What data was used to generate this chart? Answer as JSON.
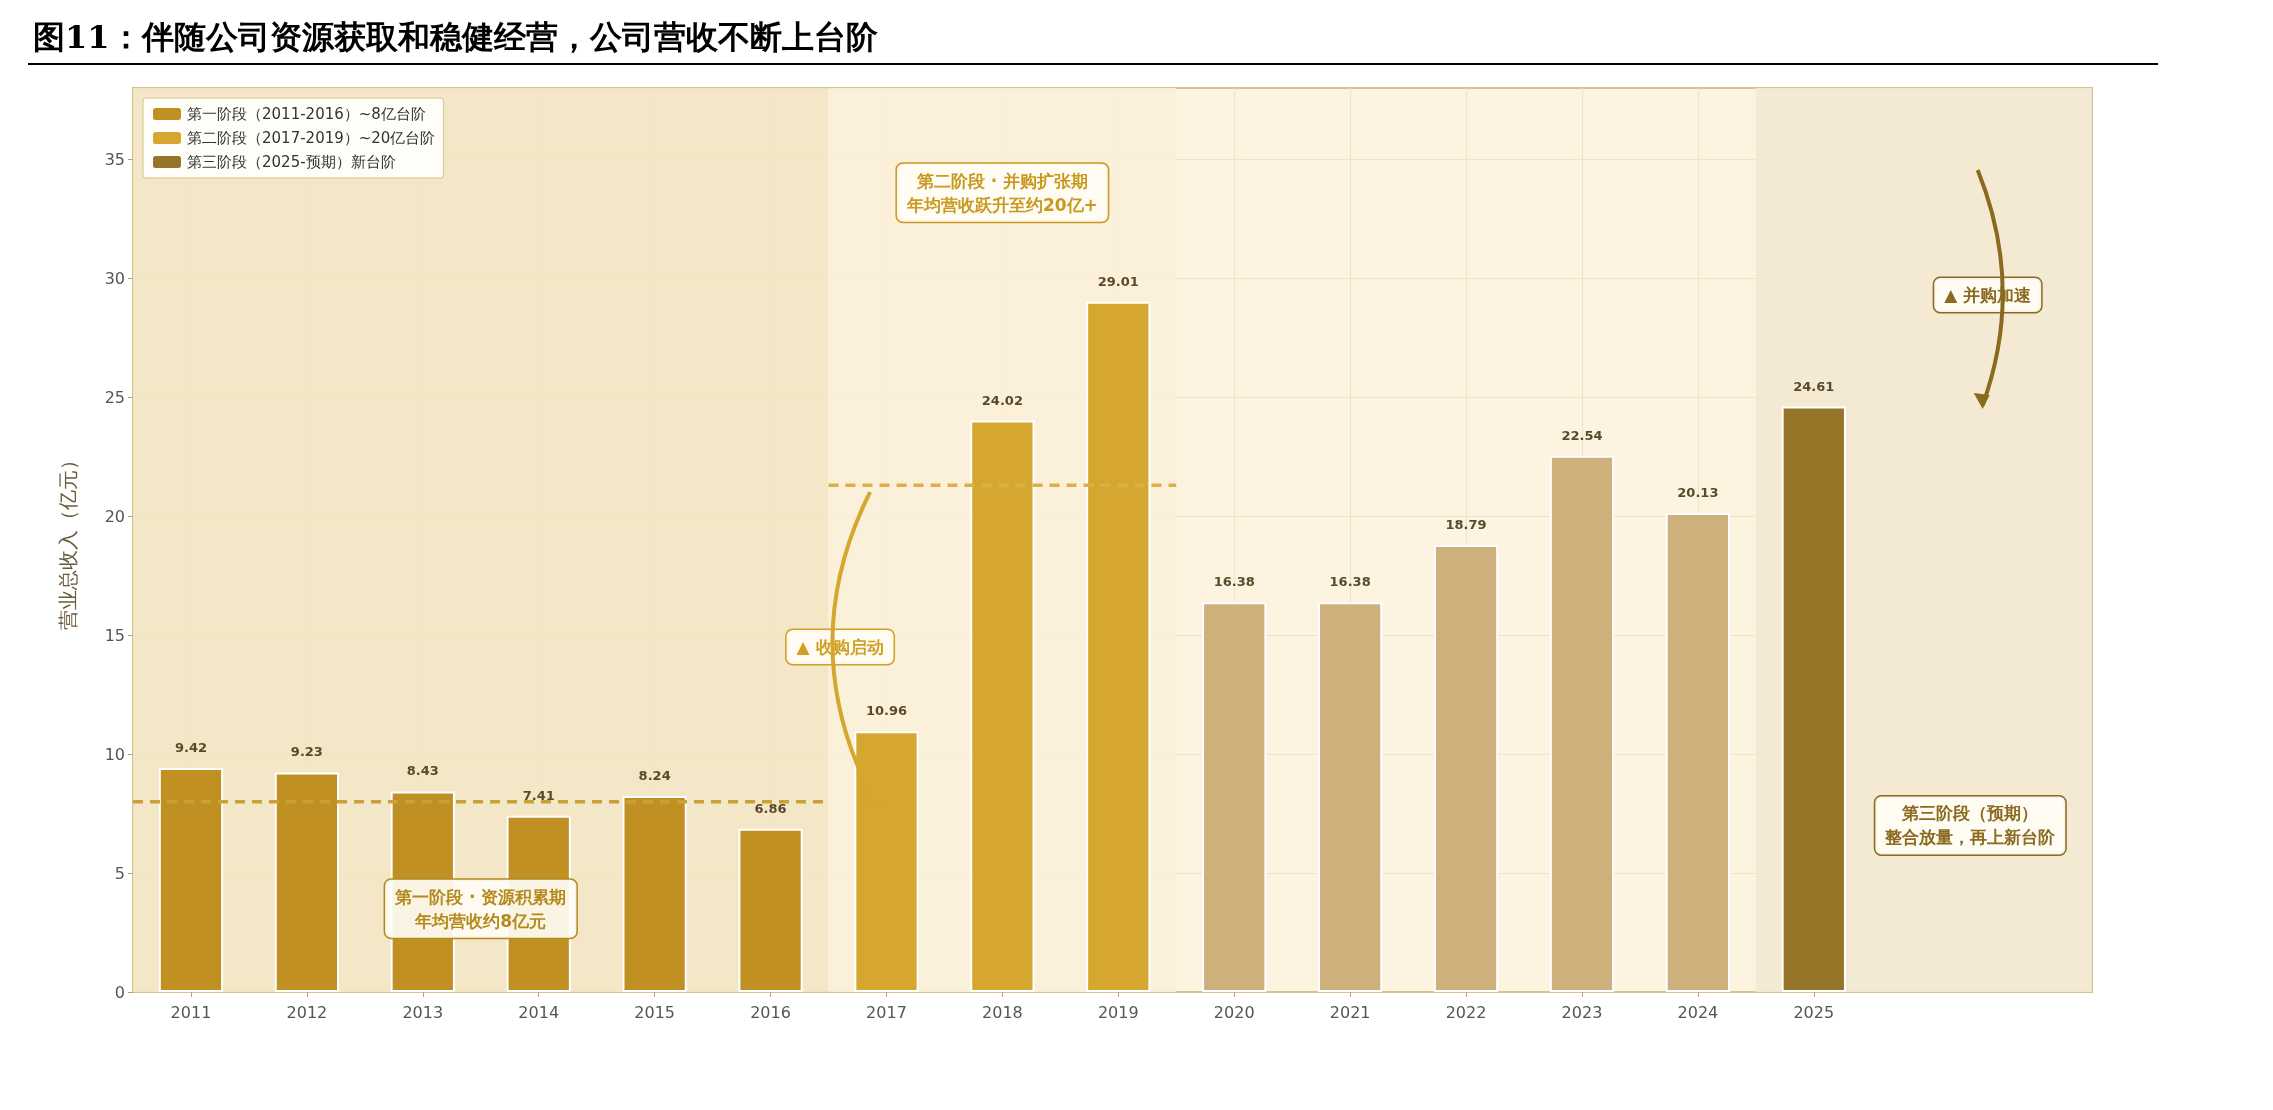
{
  "chart_data": {
    "type": "bar",
    "title": "图11：伴随公司资源获取和稳健经营，公司营收不断上台阶",
    "ylabel": "营业总收入（亿元）",
    "xlim": [
      2010.5,
      2027.4
    ],
    "xticks": [
      2011,
      2012,
      2013,
      2014,
      2015,
      2016,
      2017,
      2018,
      2019,
      2020,
      2021,
      2022,
      2023,
      2024,
      2025
    ],
    "ylim": [
      0,
      38
    ],
    "yticks": [
      0,
      5,
      10,
      15,
      20,
      25,
      30,
      35
    ],
    "series": [
      {
        "name": "第一阶段（2011-2016）~8亿台阶",
        "color": "#c09023",
        "x": [
          2011,
          2012,
          2013,
          2014,
          2015,
          2016
        ],
        "values": [
          9.42,
          9.23,
          8.43,
          7.41,
          8.24,
          6.86
        ],
        "value_labels": [
          "9.42",
          "9.23",
          "8.43",
          "7.41",
          "8.24",
          "6.86"
        ]
      },
      {
        "name": "第二阶段（2017-2019）~20亿台阶",
        "color": "#d6a72f",
        "x": [
          2017,
          2018,
          2019
        ],
        "values": [
          10.96,
          24.02,
          29.01
        ],
        "value_labels": [
          "10.96",
          "24.02",
          "29.01"
        ]
      },
      {
        "color": "#cdb07b",
        "x": [
          2020,
          2021,
          2022,
          2023,
          2024
        ],
        "values": [
          16.38,
          16.38,
          18.79,
          22.54,
          20.13
        ],
        "value_labels": [
          "16.38",
          "16.38",
          "18.79",
          "22.54",
          "20.13"
        ]
      },
      {
        "name": "第三阶段（2025-预期）新台阶",
        "color": "#967428",
        "x": [
          2025
        ],
        "values": [
          24.61
        ],
        "value_labels": [
          "24.61"
        ]
      },
      {
        "type": "line",
        "color": "#c9a13a",
        "line_style": "dashed",
        "marker": "none",
        "x": [
          2010.5,
          2016.5
        ],
        "values": [
          8,
          8
        ]
      },
      {
        "type": "line",
        "color": "#d9b04a",
        "line_style": "dashed",
        "marker": "none",
        "x": [
          2016.5,
          2019.5
        ],
        "values": [
          21.3,
          21.3
        ]
      }
    ],
    "bands": [
      {
        "axis": "x",
        "from": 2010.5,
        "to": 2016.5,
        "color": "#f3e6c4"
      },
      {
        "axis": "x",
        "from": 2016.5,
        "to": 2019.5,
        "color": "#fbf0d8"
      },
      {
        "axis": "x",
        "from": 2024.5,
        "to": 2027.4,
        "color": "#f3e9d2"
      }
    ],
    "annotations": [
      "第一阶段 · 资源积累期",
      "年均营收约8亿元",
      "第二阶段 · 并购扩张期",
      "年均营收跃升至约20亿+",
      "▲ 收购启动",
      "▲ 并购加速",
      "第三阶段（预期）",
      "整合放量，再上新台阶"
    ],
    "grid": true,
    "legend": "top left"
  }
}
